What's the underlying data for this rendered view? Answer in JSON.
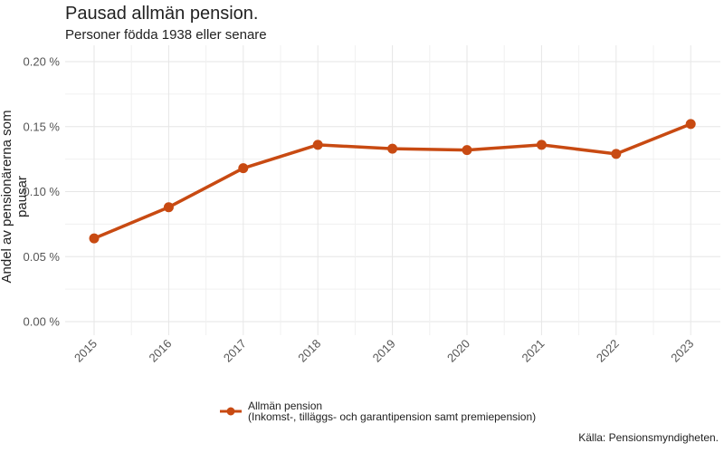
{
  "chart_data": {
    "type": "line",
    "title": "Pausad allmän pension.",
    "subtitle": "Personer födda 1938 eller senare",
    "xlabel": "",
    "ylabel": "Andel av pensionärerna som pausar",
    "x": [
      "2015",
      "2016",
      "2017",
      "2018",
      "2019",
      "2020",
      "2021",
      "2022",
      "2023"
    ],
    "series": [
      {
        "name": "Allmän pension",
        "values": [
          0.064,
          0.088,
          0.118,
          0.136,
          0.133,
          0.132,
          0.136,
          0.129,
          0.152
        ]
      }
    ],
    "ylim": [
      0,
      0.2
    ],
    "yticks": [
      "0.00 %",
      "0.05 %",
      "0.10 %",
      "0.15 %",
      "0.20 %"
    ],
    "grid": true,
    "legend_position": "bottom",
    "legend_line1": "Allmän pension",
    "legend_line2": "(Inkomst-, tilläggs- och garantipension samt premiepension)",
    "source": "Källa: Pensionsmyndigheten.",
    "line_color": "#c84a12"
  }
}
